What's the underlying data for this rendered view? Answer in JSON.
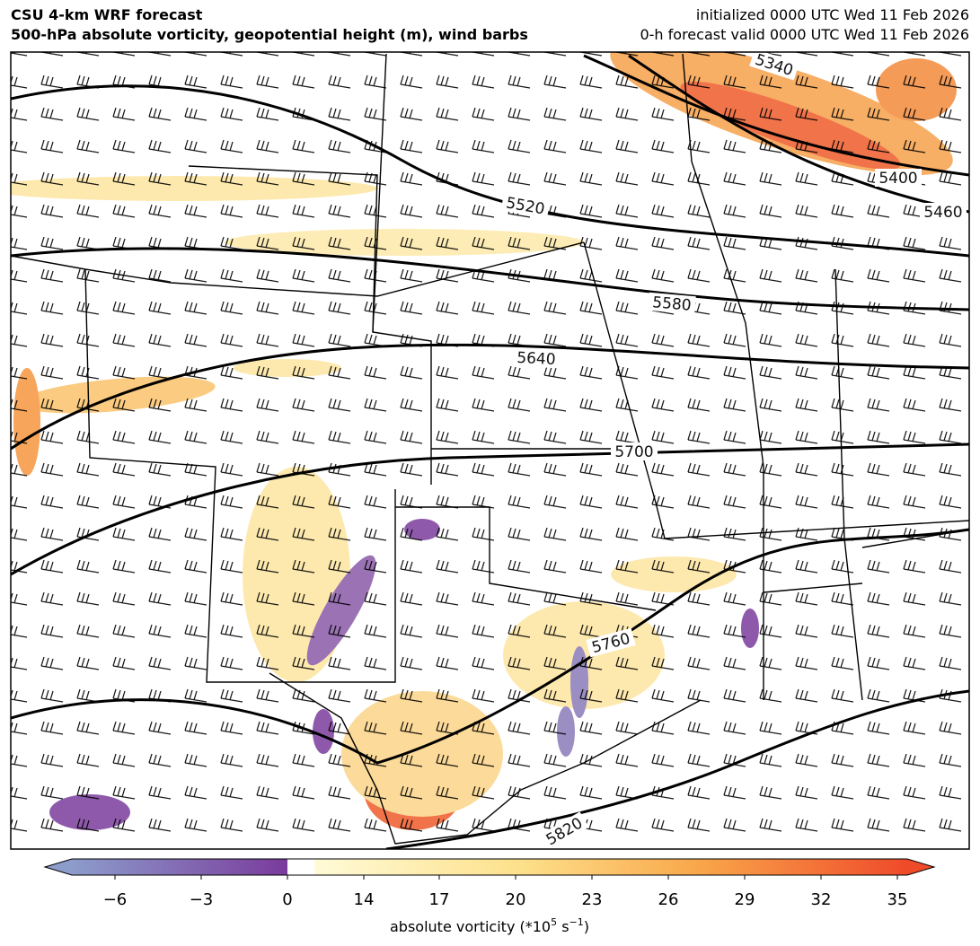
{
  "header": {
    "left": [
      "CSU 4-km WRF forecast",
      "500-hPa absolute vorticity, geopotential height (m), wind barbs"
    ],
    "right": [
      "initialized 0000 UTC Wed 11 Feb 2026",
      "0-h forecast valid 0000 UTC Wed 11 Feb 2026"
    ]
  },
  "contour_labels": [
    "5340",
    "5400",
    "5460",
    "5520",
    "5580",
    "5640",
    "5700",
    "5760",
    "5820"
  ],
  "colorbar": {
    "ticks": [
      "−6",
      "−3",
      "0",
      "14",
      "17",
      "20",
      "23",
      "26",
      "29",
      "32",
      "35"
    ],
    "label": {
      "text": "absolute vorticity (*10",
      "exponent": "5",
      "unit": " s",
      "unit_exponent": "−1",
      "close": ")"
    }
  }
}
